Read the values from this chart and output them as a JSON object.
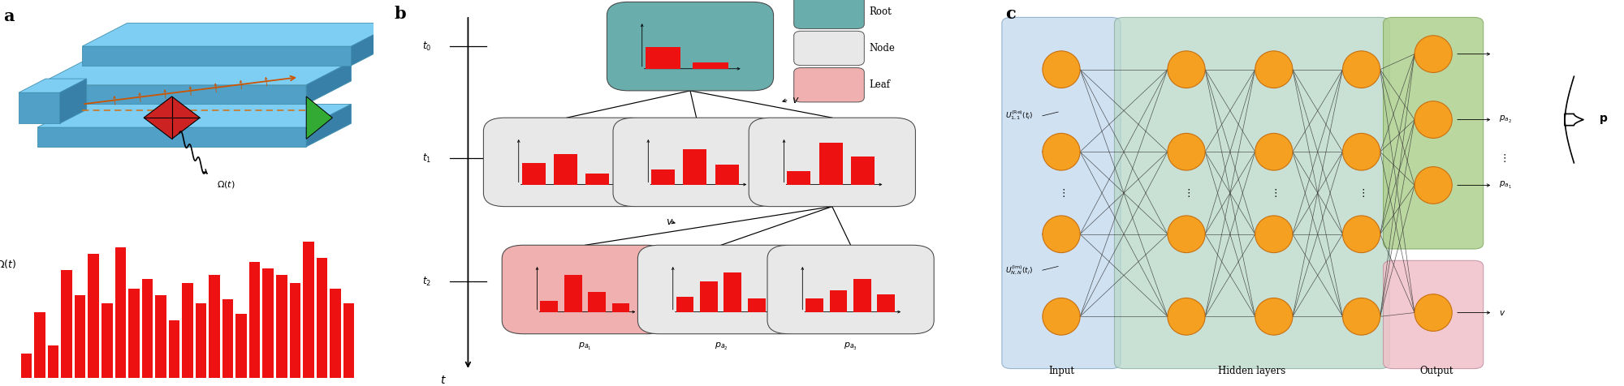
{
  "fig_width": 20.0,
  "fig_height": 4.76,
  "dpi": 100,
  "panel_a_label": "a",
  "panel_b_label": "b",
  "panel_c_label": "c",
  "bar_values": [
    0.12,
    0.32,
    0.16,
    0.52,
    0.4,
    0.6,
    0.36,
    0.63,
    0.43,
    0.48,
    0.4,
    0.28,
    0.46,
    0.36,
    0.5,
    0.38,
    0.31,
    0.56,
    0.53,
    0.5,
    0.46,
    0.66,
    0.58,
    0.43,
    0.36
  ],
  "bar_color": "#ee1111",
  "teal_color": "#6aadad",
  "node_color": "#e8e8e8",
  "leaf_color": "#f0b0b0",
  "orange_neuron_face": "#f5a020",
  "orange_neuron_edge": "#c87010",
  "input_box_color": "#c8dcf0",
  "hidden_box_color": "#b8d8c8",
  "output_green_color": "#b0d090",
  "output_pink_color": "#f0c0c8",
  "blue_chip": "#7ecef4",
  "blue_chip_dark": "#50a0c8",
  "blue_chip_darker": "#3880a8"
}
